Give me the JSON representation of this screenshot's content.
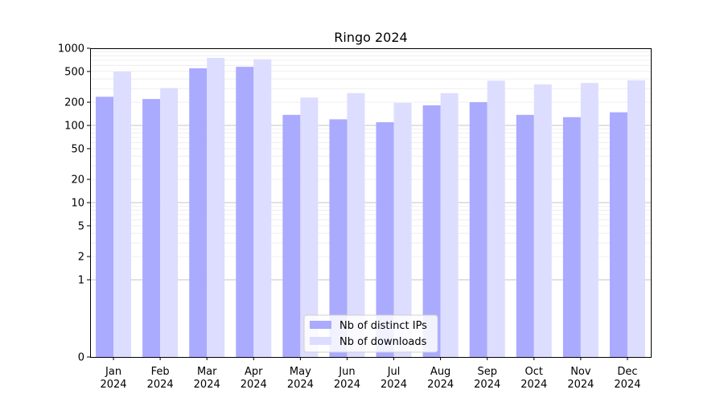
{
  "chart_data": {
    "type": "bar",
    "title": "Ringo 2024",
    "xlabel": "",
    "ylabel": "",
    "yscale": "symlog",
    "ylim": [
      0,
      1000
    ],
    "y_ticks": [
      0,
      1,
      2,
      5,
      10,
      20,
      50,
      100,
      200,
      500,
      1000
    ],
    "grid": true,
    "legend_placement": "bottom-center",
    "categories": [
      [
        "Jan",
        "2024"
      ],
      [
        "Feb",
        "2024"
      ],
      [
        "Mar",
        "2024"
      ],
      [
        "Apr",
        "2024"
      ],
      [
        "May",
        "2024"
      ],
      [
        "Jun",
        "2024"
      ],
      [
        "Jul",
        "2024"
      ],
      [
        "Aug",
        "2024"
      ],
      [
        "Sep",
        "2024"
      ],
      [
        "Oct",
        "2024"
      ],
      [
        "Nov",
        "2024"
      ],
      [
        "Dec",
        "2024"
      ]
    ],
    "series": [
      {
        "name": "Nb of distinct IPs",
        "color": "#aaaaff",
        "values": [
          235,
          220,
          550,
          575,
          137,
          120,
          110,
          182,
          200,
          137,
          128,
          148
        ]
      },
      {
        "name": "Nb of downloads",
        "color": "#ddddff",
        "values": [
          500,
          305,
          750,
          720,
          230,
          262,
          196,
          262,
          380,
          340,
          355,
          385
        ]
      }
    ]
  }
}
